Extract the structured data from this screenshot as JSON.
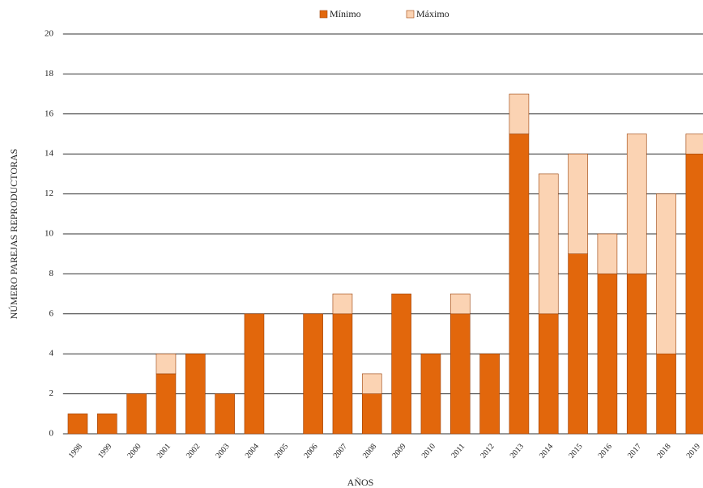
{
  "chart_data": {
    "type": "stacked-bar",
    "xlabel": "AÑOS",
    "ylabel": "NÚMERO PAREJAS REPRODUCTORAS",
    "categories": [
      "1998",
      "1999",
      "2000",
      "2001",
      "2002",
      "2003",
      "2004",
      "2005",
      "2006",
      "2007",
      "2008",
      "2009",
      "2010",
      "2011",
      "2012",
      "2013",
      "2014",
      "2015",
      "2016",
      "2017",
      "2018",
      "2019"
    ],
    "series": [
      {
        "name": "Mínimo",
        "color": "#e2670c",
        "values": [
          1,
          1,
          2,
          3,
          4,
          2,
          6,
          0,
          6,
          6,
          2,
          7,
          4,
          6,
          4,
          15,
          6,
          9,
          8,
          8,
          4,
          14
        ]
      },
      {
        "name": "Máximo",
        "color": "#fbd3b3",
        "values": [
          0,
          0,
          0,
          1,
          0,
          0,
          0,
          0,
          0,
          1,
          1,
          0,
          0,
          1,
          0,
          2,
          7,
          5,
          2,
          7,
          8,
          1
        ]
      }
    ],
    "ylim": [
      0,
      20
    ],
    "yticks": [
      0,
      2,
      4,
      6,
      8,
      10,
      12,
      14,
      16,
      18,
      20
    ],
    "grid": true,
    "legend": "top"
  }
}
